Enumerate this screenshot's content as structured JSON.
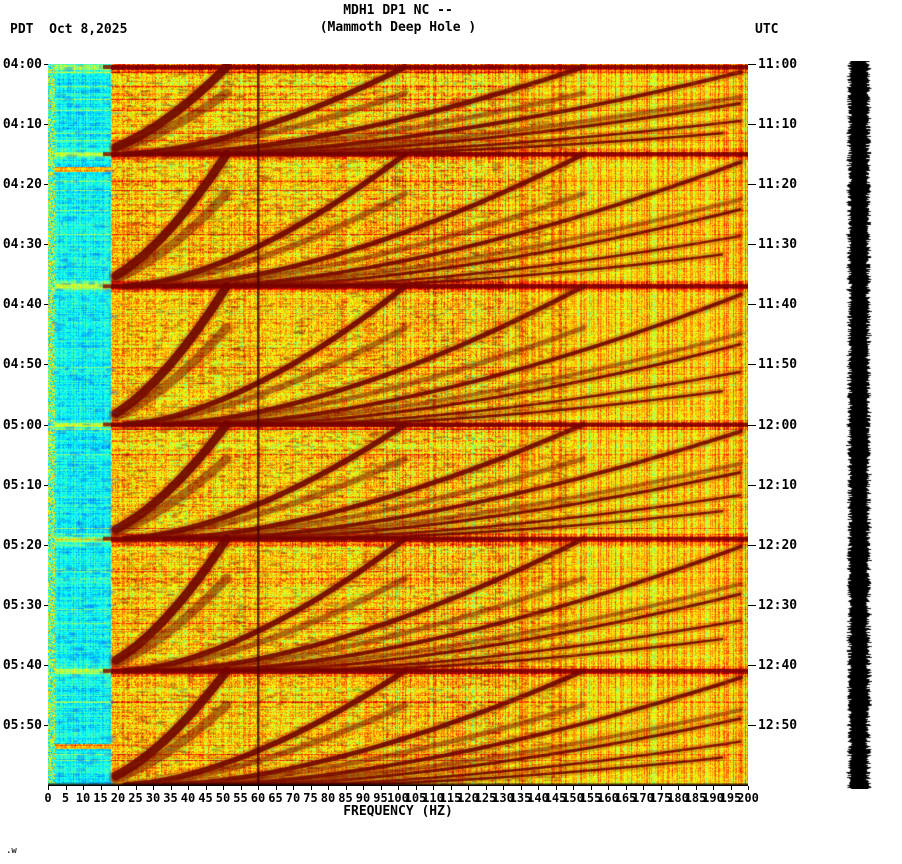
{
  "header": {
    "title_line1": "MDH1 DP1 NC --",
    "title_line2": "(Mammoth Deep Hole )",
    "left_label": "PDT  Oct 8,2025",
    "right_label": "UTC"
  },
  "footer": {
    "note": ".w"
  },
  "chart_data": {
    "type": "heatmap",
    "subtype": "spectrogram",
    "title": "MDH1 DP1 NC -- (Mammoth Deep Hole )",
    "station": "MDH1 DP1 NC",
    "station_name": "Mammoth Deep Hole",
    "date": "Oct 8,2025",
    "xlabel": "FREQUENCY (HZ)",
    "xlim": [
      0,
      200
    ],
    "frequency_tick_step_hz": 5,
    "x_ticks": [
      0,
      5,
      10,
      15,
      20,
      25,
      30,
      35,
      40,
      45,
      50,
      55,
      60,
      65,
      70,
      75,
      80,
      85,
      90,
      95,
      100,
      105,
      110,
      115,
      120,
      125,
      130,
      135,
      140,
      145,
      150,
      155,
      160,
      165,
      170,
      175,
      180,
      185,
      190,
      195,
      200
    ],
    "time_span_minutes": 120,
    "left_axis": {
      "timezone": "PDT",
      "ticks": [
        "04:00",
        "04:10",
        "04:20",
        "04:30",
        "04:40",
        "04:50",
        "05:00",
        "05:10",
        "05:20",
        "05:30",
        "05:40",
        "05:50"
      ]
    },
    "right_axis": {
      "timezone": "UTC",
      "ticks": [
        "11:00",
        "11:10",
        "11:20",
        "11:30",
        "11:40",
        "11:50",
        "12:00",
        "12:10",
        "12:20",
        "12:30",
        "12:40",
        "12:50"
      ]
    },
    "colormap": "jet",
    "colormap_stops": [
      "#00008f",
      "#0000ff",
      "#00ffff",
      "#7fff7f",
      "#ffff00",
      "#ff7f00",
      "#ff0000",
      "#7f0000"
    ],
    "features": {
      "powerline_hz": 60,
      "quiet_band_hz": [
        0,
        18
      ],
      "event_boundaries_min": [
        0.5,
        15,
        37,
        60,
        79,
        101
      ],
      "event_boundary_times_pdt": [
        "04:00",
        "04:15",
        "04:37",
        "05:00",
        "05:19",
        "05:41"
      ],
      "low_freq_streaks_min": [
        17.5,
        113.5
      ],
      "description": "Repeating upward-gliding harmonic arcs (dark red) fanning from ~20 Hz toward 200 Hz within each event block; quiet cyan band below ~18 Hz; dark vertical 60 Hz powerline; black amplitude strip at right edge"
    }
  },
  "side_strip": {
    "name": "amplitude-trace"
  }
}
